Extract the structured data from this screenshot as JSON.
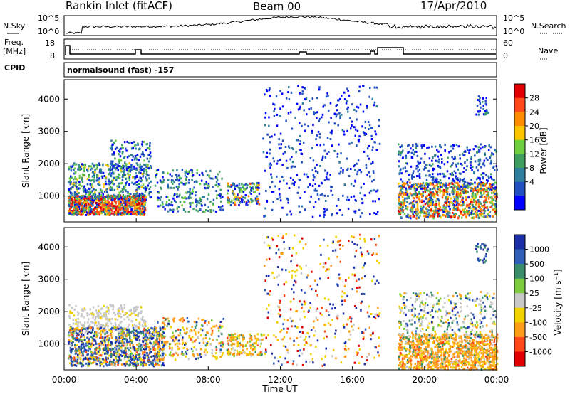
{
  "header": {
    "station": "Rankin Inlet (fitACF)",
    "beam": "Beam 00",
    "date": "17/Apr/2010"
  },
  "nsky_panel": {
    "left_label": "N.Sky",
    "right_label": "N.Search",
    "left_ticks": [
      "10^5",
      "10^0"
    ],
    "right_ticks": [
      "10^5",
      "10^0"
    ]
  },
  "freq_panel": {
    "left_label_line1": "Freq.",
    "left_label_line2": "[MHz]",
    "right_label": "Nave",
    "left_ticks": [
      "18",
      "8"
    ],
    "right_ticks": [
      "60",
      "0"
    ]
  },
  "cpid": {
    "label": "CPID",
    "text": "normalsound (fast) -157"
  },
  "chart_data": [
    {
      "type": "heatmap",
      "title": "",
      "xlabel": "",
      "ylabel": "Slant Range [km]",
      "ylim": [
        200,
        4600
      ],
      "yticks": [
        "4000",
        "3000",
        "2000",
        "1000"
      ],
      "colorbar_label": "Power [dB]",
      "colorbar_ticks": [
        "28",
        "24",
        "20",
        "16",
        "12",
        "8",
        "4"
      ],
      "colorbar_colors": [
        "#e00000",
        "#ff4a1a",
        "#ff8c00",
        "#ffc400",
        "#6fd040",
        "#3f9f60",
        "#2f7f9f",
        "#2050c0",
        "#0000ff"
      ]
    },
    {
      "type": "heatmap",
      "title": "",
      "xlabel": "Time UT",
      "ylabel": "Slant Range [km]",
      "ylim": [
        200,
        4600
      ],
      "yticks": [
        "4000",
        "3000",
        "2000",
        "1000"
      ],
      "xticks": [
        "00:00",
        "04:00",
        "08:00",
        "12:00",
        "16:00",
        "20:00",
        "00:00"
      ],
      "colorbar_label": "Velocity [m s⁻¹]",
      "colorbar_ticks": [
        "1000",
        "500",
        "100",
        "25",
        "-25",
        "-100",
        "-500",
        "-1000"
      ],
      "colorbar_colors": [
        "#1a2ea8",
        "#2f5fb8",
        "#3a8f6a",
        "#7ccc3c",
        "#c8c8c8",
        "#f2d300",
        "#ff9c1a",
        "#ff4a1a",
        "#e00000"
      ]
    }
  ]
}
